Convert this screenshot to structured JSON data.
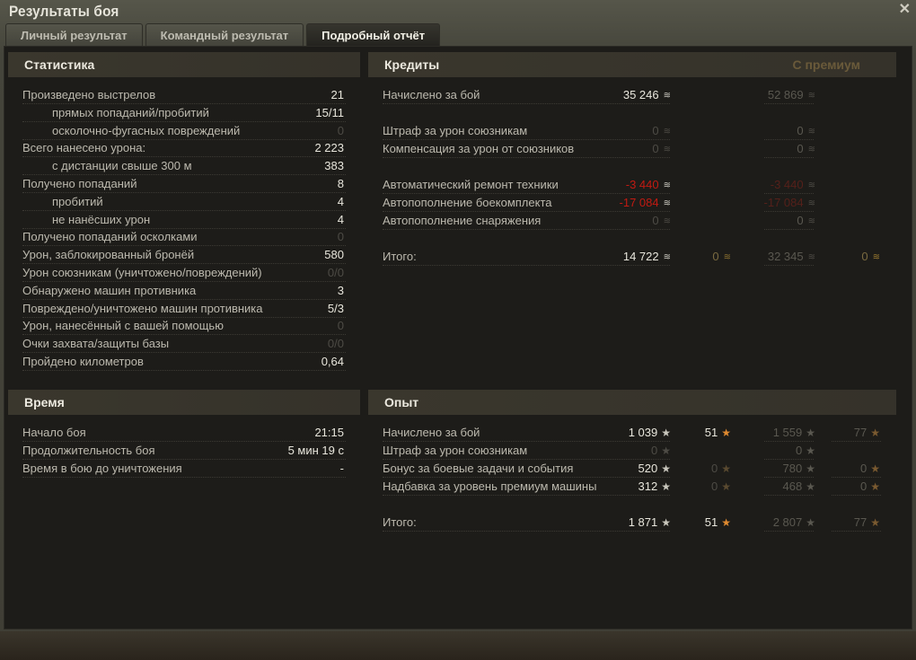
{
  "window": {
    "title": "Результаты боя",
    "close_icon": "close-icon"
  },
  "tabs": [
    {
      "label": "Личный результат"
    },
    {
      "label": "Командный результат"
    },
    {
      "label": "Подробный отчёт",
      "active": true
    }
  ],
  "statistics": {
    "title": "Статистика",
    "rows": [
      {
        "label": "Произведено выстрелов",
        "value": "21"
      },
      {
        "label": "прямых попаданий/пробитий",
        "value": "15/11",
        "indent": true
      },
      {
        "label": "осколочно-фугасных повреждений",
        "value": "0",
        "indent": true
      },
      {
        "label": "Всего нанесено урона:",
        "value": "2 223"
      },
      {
        "label": "с дистанции свыше 300 м",
        "value": "383",
        "indent": true
      },
      {
        "label": "Получено попаданий",
        "value": "8"
      },
      {
        "label": "пробитий",
        "value": "4",
        "indent": true
      },
      {
        "label": "не нанёсших урон",
        "value": "4",
        "indent": true
      },
      {
        "label": "Получено попаданий осколками",
        "value": "0"
      },
      {
        "label": "Урон, заблокированный бронёй",
        "value": "580"
      },
      {
        "label": "Урон союзникам (уничтожено/повреждений)",
        "value": "0/0"
      },
      {
        "label": "Обнаружено машин противника",
        "value": "3"
      },
      {
        "label": "Повреждено/уничтожено машин противника",
        "value": "5/3"
      },
      {
        "label": "Урон, нанесённый с вашей помощью",
        "value": "0"
      },
      {
        "label": "Очки захвата/защиты базы",
        "value": "0/0"
      },
      {
        "label": "Пройдено километров",
        "value": "0,64"
      }
    ]
  },
  "time": {
    "title": "Время",
    "rows": [
      {
        "label": "Начало боя",
        "value": "21:15"
      },
      {
        "label": "Продолжительность боя",
        "value": "5 мин 19 с"
      },
      {
        "label": "Время в бою до уничтожения",
        "value": "-"
      }
    ]
  },
  "credits": {
    "title": "Кредиты",
    "premium_label": "С премиум",
    "icon": "credits-coin-icon",
    "gold_icon": "gold-coin-icon",
    "rows": [
      {
        "label": "Начислено за бой",
        "base": "35 246",
        "premium": "52 869"
      },
      {
        "label": "Штраф за урон союзникам",
        "base": "0",
        "premium": "0"
      },
      {
        "label": "Компенсация за урон от союзников",
        "base": "0",
        "premium": "0"
      },
      {
        "label": "Автоматический ремонт техники",
        "base": "-3 440",
        "premium": "-3 440"
      },
      {
        "label": "Автопополнение боекомплекта",
        "base": "-17 084",
        "premium": "-17 084"
      },
      {
        "label": "Автопополнение снаряжения",
        "base": "0",
        "premium": "0"
      },
      {
        "label": "Итого:",
        "base": "14 722",
        "base_gold": "0",
        "premium": "32 345",
        "premium_gold": "0"
      }
    ]
  },
  "experience": {
    "title": "Опыт",
    "icon": "experience-star-icon",
    "free_icon": "free-experience-star-icon",
    "rows": [
      {
        "label": "Начислено за бой",
        "base": "1 039",
        "base_free": "51",
        "premium": "1 559",
        "premium_free": "77"
      },
      {
        "label": "Штраф за урон союзникам",
        "base": "0",
        "premium": "0"
      },
      {
        "label": "Бонус за боевые задачи и события",
        "base": "520",
        "base_free": "0",
        "premium": "780",
        "premium_free": "0"
      },
      {
        "label": "Надбавка за уровень премиум машины",
        "base": "312",
        "base_free": "0",
        "premium": "468",
        "premium_free": "0"
      },
      {
        "label": "Итого:",
        "base": "1 871",
        "base_free": "51",
        "premium": "2 807",
        "premium_free": "77"
      }
    ]
  }
}
